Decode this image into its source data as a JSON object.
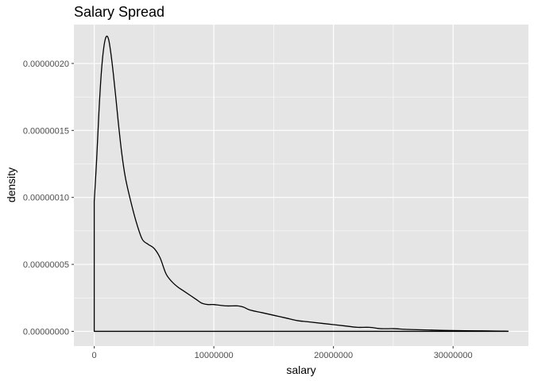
{
  "chart_data": {
    "type": "area",
    "title": "Salary Spread",
    "xlabel": "salary",
    "ylabel": "density",
    "xlim": [
      -1700000,
      36300000
    ],
    "ylim": [
      -1.1e-08,
      2.29e-07
    ],
    "x_ticks": [
      {
        "value": 0,
        "label": "0"
      },
      {
        "value": 10000000,
        "label": "10000000"
      },
      {
        "value": 20000000,
        "label": "20000000"
      },
      {
        "value": 30000000,
        "label": "30000000"
      }
    ],
    "y_ticks": [
      {
        "value": 0.0,
        "label": "0.00000000"
      },
      {
        "value": 5e-08,
        "label": "0.00000005"
      },
      {
        "value": 1e-07,
        "label": "0.00000010"
      },
      {
        "value": 1.5e-07,
        "label": "0.00000015"
      },
      {
        "value": 2e-07,
        "label": "0.00000020"
      }
    ],
    "grid": true,
    "legend": "none",
    "colors": {
      "panel": "#e5e5e5",
      "grid": "#ffffff",
      "line": "#000000"
    },
    "series": [
      {
        "x": [
          0,
          0,
          200000,
          400000,
          600000,
          800000,
          1000000,
          1200000,
          1400000,
          1600000,
          1800000,
          2000000,
          2300000,
          2600000,
          3000000,
          3500000,
          4000000,
          4500000,
          5000000,
          5500000,
          6000000,
          6500000,
          7000000,
          7500000,
          8000000,
          8500000,
          9000000,
          9500000,
          10000000,
          11000000,
          12000000,
          12500000,
          13000000,
          14000000,
          15000000,
          16000000,
          17000000,
          18000000,
          19000000,
          20000000,
          21000000,
          22000000,
          23000000,
          24000000,
          25000000,
          26000000,
          27000000,
          28000000,
          29000000,
          30000000,
          31000000,
          32000000,
          33000000,
          34000000,
          34600000,
          34600000
        ],
        "y": [
          0,
          9.7e-08,
          1.28e-07,
          1.65e-07,
          1.94e-07,
          2.12e-07,
          2.2e-07,
          2.18e-07,
          2.07e-07,
          1.92e-07,
          1.75e-07,
          1.57e-07,
          1.33e-07,
          1.15e-07,
          9.9e-08,
          8.2e-08,
          6.9e-08,
          6.5e-08,
          6.2e-08,
          5.5e-08,
          4.3e-08,
          3.7e-08,
          3.3e-08,
          3e-08,
          2.7e-08,
          2.4e-08,
          2.1e-08,
          2e-08,
          2e-08,
          1.9e-08,
          1.9e-08,
          1.8e-08,
          1.6e-08,
          1.4e-08,
          1.2e-08,
          1e-08,
          8e-09,
          7e-09,
          6e-09,
          5e-09,
          4e-09,
          3e-09,
          3e-09,
          2e-09,
          2e-09,
          1.5e-09,
          1.2e-09,
          1e-09,
          8e-10,
          6e-10,
          5e-10,
          4e-10,
          3e-10,
          2e-10,
          1e-10,
          0
        ]
      }
    ]
  }
}
